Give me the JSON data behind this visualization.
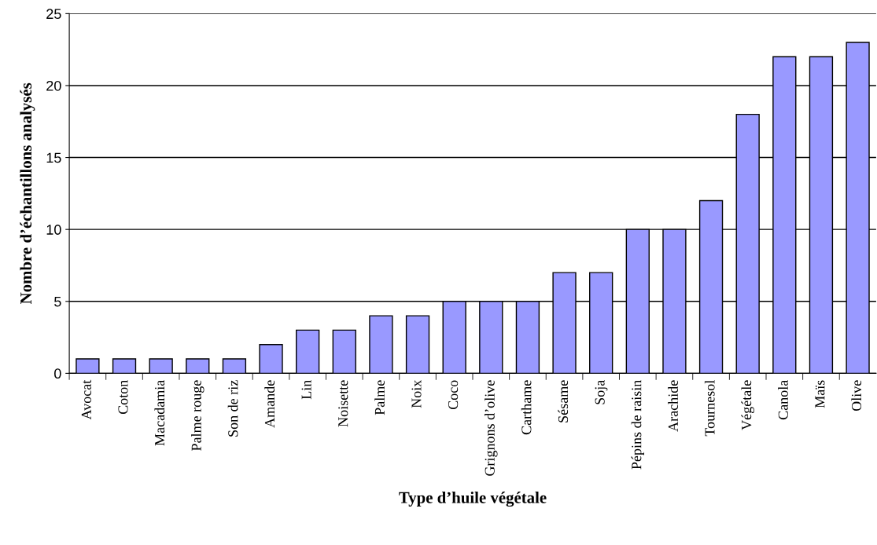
{
  "chart_data": {
    "type": "bar",
    "xlabel": "Type d’huile végétale",
    "ylabel": "Nombre d’échantillons analysés",
    "categories": [
      "Avocat",
      "Coton",
      "Macadamia",
      "Palme rouge",
      "Son de riz",
      "Amande",
      "Lin",
      "Noisette",
      "Palme",
      "Noix",
      "Coco",
      "Grignons d’olive",
      "Carthame",
      "Sésame",
      "Soja",
      "Pépins de raisin",
      "Arachide",
      "Tournesol",
      "Végétale",
      "Canola",
      "Maïs",
      "Olive"
    ],
    "values": [
      1,
      1,
      1,
      1,
      1,
      2,
      3,
      3,
      4,
      4,
      5,
      5,
      5,
      7,
      7,
      10,
      10,
      12,
      18,
      22,
      22,
      23
    ],
    "color": "#9999ff",
    "ylim": [
      0,
      25
    ],
    "yticks": [
      0,
      5,
      10,
      15,
      20,
      25
    ],
    "grid": "y",
    "legend": false
  }
}
